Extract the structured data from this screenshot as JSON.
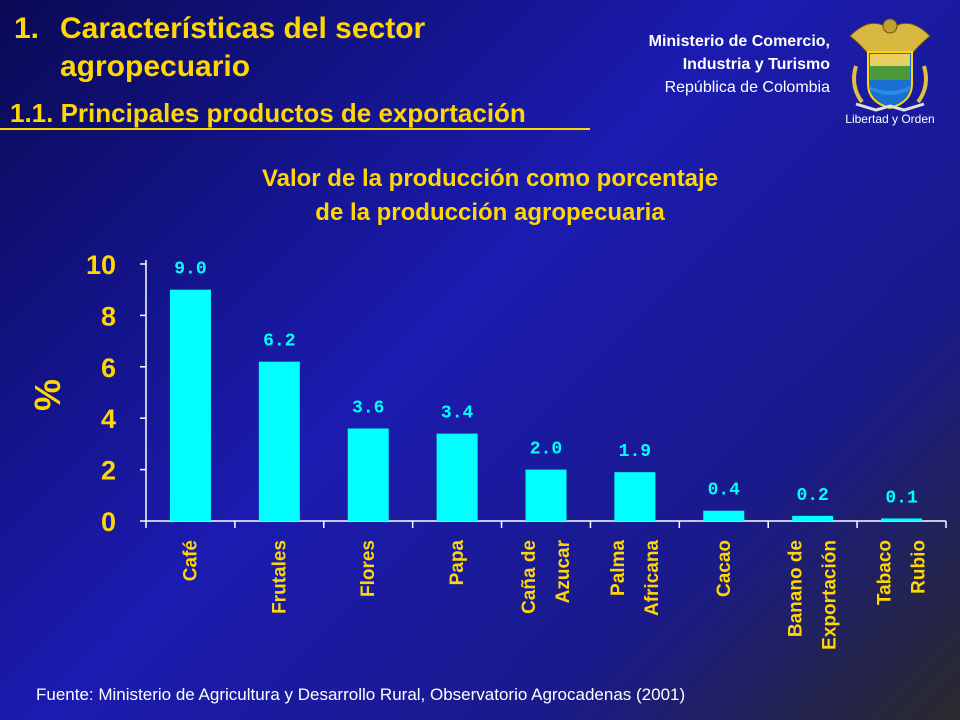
{
  "header": {
    "number": "1.",
    "title_line1": "Características del sector",
    "title_line2": "agropecuario",
    "subtitle": "1.1. Principales productos de exportación"
  },
  "ministry": {
    "line1": "Ministerio de Comercio,",
    "line2": "Industria y Turismo",
    "line3": "República de Colombia",
    "motto": "Libertad y Orden"
  },
  "source": "Fuente: Ministerio de Agricultura y Desarrollo Rural, Observatorio Agrocadenas  (2001)",
  "colors": {
    "background": "#1b1bb0",
    "title": "#ffd700",
    "bars": "#00ffff"
  },
  "chart_data": {
    "type": "bar",
    "title": "Valor de la producción como porcentaje de la producción agropecuaria",
    "title_line1": "Valor de la producción como porcentaje",
    "title_line2": "de la producción agropecuaria",
    "ylabel": "%",
    "ylim": [
      0,
      10
    ],
    "yticks": [
      0,
      2,
      4,
      6,
      8,
      10
    ],
    "categories": [
      [
        "Café"
      ],
      [
        "Frutales"
      ],
      [
        "Flores"
      ],
      [
        "Papa"
      ],
      [
        "Caña de",
        "Azucar"
      ],
      [
        "Palma",
        "Africana"
      ],
      [
        "Cacao"
      ],
      [
        "Banano de",
        "Exportación"
      ],
      [
        "Tabaco",
        "Rubio"
      ]
    ],
    "values": [
      9.0,
      6.2,
      3.6,
      3.4,
      2.0,
      1.9,
      0.4,
      0.2,
      0.1
    ],
    "value_labels": [
      "9.0",
      "6.2",
      "3.6",
      "3.4",
      "2.0",
      "1.9",
      "0.4",
      "0.2",
      "0.1"
    ],
    "grid": false,
    "legend": "none"
  }
}
